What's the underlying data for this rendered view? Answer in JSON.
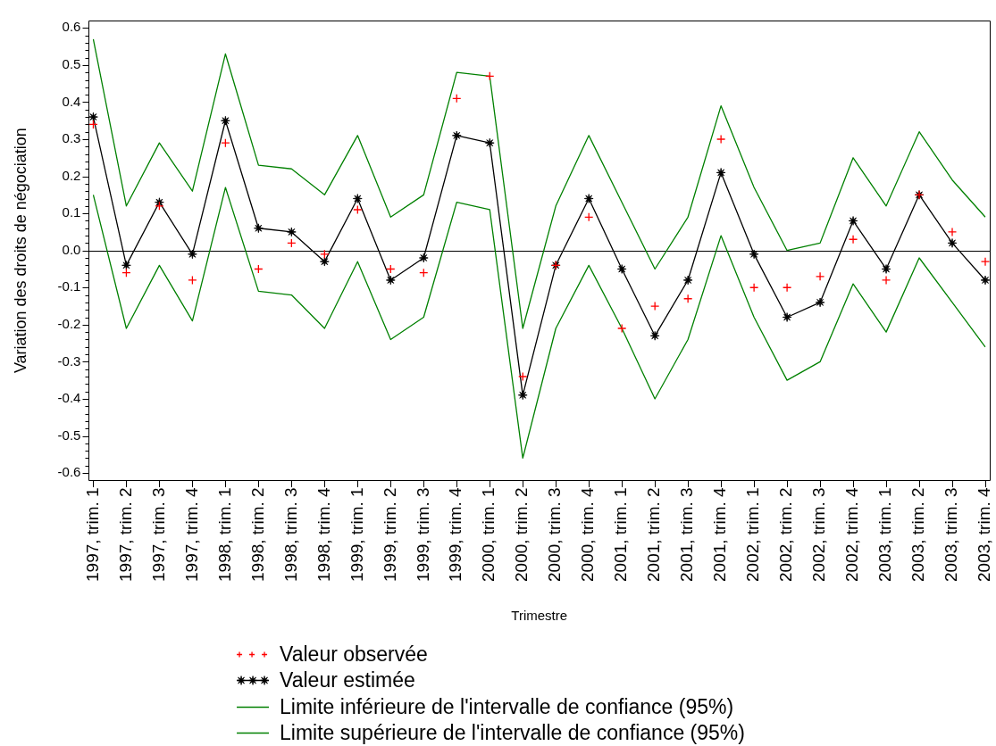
{
  "chart_data": {
    "type": "line",
    "xlabel": "Trimestre",
    "ylabel": "Variation des droits de négociation",
    "categories": [
      "1997, trim. 1",
      "1997, trim. 2",
      "1997, trim. 3",
      "1997, trim. 4",
      "1998, trim. 1",
      "1998, trim. 2",
      "1998, trim. 3",
      "1998, trim. 4",
      "1999, trim. 1",
      "1999, trim. 2",
      "1999, trim. 3",
      "1999, trim. 4",
      "2000, trim. 1",
      "2000, trim. 2",
      "2000, trim. 3",
      "2000, trim. 4",
      "2001, trim. 1",
      "2001, trim. 2",
      "2001, trim. 3",
      "2001, trim. 4",
      "2002, trim. 1",
      "2002, trim. 2",
      "2002, trim. 3",
      "2002, trim. 4",
      "2003, trim. 1",
      "2003, trim. 2",
      "2003, trim. 3",
      "2003, trim. 4"
    ],
    "series": [
      {
        "name": "Valeur observée",
        "type": "scatter",
        "marker": "cross",
        "color": "#ff0000",
        "values": [
          0.34,
          -0.06,
          0.12,
          -0.08,
          0.29,
          -0.05,
          0.02,
          -0.01,
          0.11,
          -0.05,
          -0.06,
          0.41,
          0.47,
          -0.34,
          -0.04,
          0.09,
          -0.21,
          -0.15,
          -0.13,
          0.3,
          -0.1,
          -0.1,
          -0.07,
          0.03,
          -0.08,
          0.15,
          0.05,
          -0.03
        ]
      },
      {
        "name": "Valeur estimée",
        "marker": "star",
        "color": "#000000",
        "values": [
          0.36,
          -0.04,
          0.13,
          -0.01,
          0.35,
          0.06,
          0.05,
          -0.03,
          0.14,
          -0.08,
          -0.02,
          0.31,
          0.29,
          -0.39,
          -0.04,
          0.14,
          -0.05,
          -0.23,
          -0.08,
          0.21,
          -0.01,
          -0.18,
          -0.14,
          0.08,
          -0.05,
          0.15,
          0.02,
          -0.08
        ]
      },
      {
        "name": "Limite inférieure de l'intervalle de confiance (95%)",
        "marker": "none",
        "color": "#008000",
        "values": [
          0.15,
          -0.21,
          -0.04,
          -0.19,
          0.17,
          -0.11,
          -0.12,
          -0.21,
          -0.03,
          -0.24,
          -0.18,
          0.13,
          0.11,
          -0.56,
          -0.21,
          -0.04,
          -0.21,
          -0.4,
          -0.24,
          0.04,
          -0.18,
          -0.35,
          -0.3,
          -0.09,
          -0.22,
          -0.02,
          -0.14,
          -0.26
        ]
      },
      {
        "name": "Limite supérieure de l'intervalle de confiance (95%)",
        "marker": "none",
        "color": "#008000",
        "values": [
          0.57,
          0.12,
          0.29,
          0.16,
          0.53,
          0.23,
          0.22,
          0.15,
          0.31,
          0.09,
          0.15,
          0.48,
          0.47,
          -0.21,
          0.12,
          0.31,
          0.13,
          -0.05,
          0.09,
          0.39,
          0.17,
          0.0,
          0.02,
          0.25,
          0.12,
          0.32,
          0.19,
          0.09
        ]
      }
    ],
    "ylim": [
      -0.62,
      0.62
    ],
    "yticks": [
      -0.6,
      {
        "value": -0.58,
        "label": null
      },
      {
        "value": -0.56,
        "label": null
      },
      {
        "value": -0.54,
        "label": null
      },
      {
        "value": -0.52,
        "label": null
      },
      -0.5,
      {
        "value": -0.48,
        "label": null
      },
      {
        "value": -0.46,
        "label": null
      },
      {
        "value": -0.44,
        "label": null
      },
      {
        "value": -0.42,
        "label": null
      },
      -0.4,
      {
        "value": -0.38,
        "label": null
      },
      {
        "value": -0.36,
        "label": null
      },
      {
        "value": -0.34,
        "label": null
      },
      {
        "value": -0.32,
        "label": null
      },
      -0.3,
      {
        "value": -0.28,
        "label": null
      },
      {
        "value": -0.26,
        "label": null
      },
      {
        "value": -0.24,
        "label": null
      },
      {
        "value": -0.22,
        "label": null
      },
      -0.2,
      {
        "value": -0.18,
        "label": null
      },
      {
        "value": -0.16,
        "label": null
      },
      {
        "value": -0.14,
        "label": null
      },
      {
        "value": -0.12,
        "label": null
      },
      -0.1,
      {
        "value": -0.08,
        "label": null
      },
      {
        "value": -0.06,
        "label": null
      },
      {
        "value": -0.04,
        "label": null
      },
      {
        "value": -0.02,
        "label": null
      },
      {
        "value": 0,
        "label": "0.0"
      },
      {
        "value": 0.02,
        "label": null
      },
      {
        "value": 0.04,
        "label": null
      },
      {
        "value": 0.06,
        "label": null
      },
      {
        "value": 0.08,
        "label": null
      },
      0.1,
      {
        "value": 0.12,
        "label": null
      },
      {
        "value": 0.14,
        "label": null
      },
      {
        "value": 0.16,
        "label": null
      },
      {
        "value": 0.18,
        "label": null
      },
      0.2,
      {
        "value": 0.22,
        "label": null
      },
      {
        "value": 0.24,
        "label": null
      },
      {
        "value": 0.26,
        "label": null
      },
      {
        "value": 0.28,
        "label": null
      },
      0.3,
      {
        "value": 0.32,
        "label": null
      },
      {
        "value": 0.34,
        "label": null
      },
      {
        "value": 0.36,
        "label": null
      },
      {
        "value": 0.38,
        "label": null
      },
      0.4,
      {
        "value": 0.42,
        "label": null
      },
      {
        "value": 0.44,
        "label": null
      },
      {
        "value": 0.46,
        "label": null
      },
      {
        "value": 0.48,
        "label": null
      },
      0.5,
      {
        "value": 0.52,
        "label": null
      },
      {
        "value": 0.54,
        "label": null
      },
      {
        "value": 0.56,
        "label": null
      },
      {
        "value": 0.58,
        "label": null
      },
      0.6
    ],
    "ref_lines": [
      {
        "axis": "y",
        "value": 0,
        "color": "#000000"
      }
    ],
    "grid": false,
    "legend": "bottom"
  }
}
